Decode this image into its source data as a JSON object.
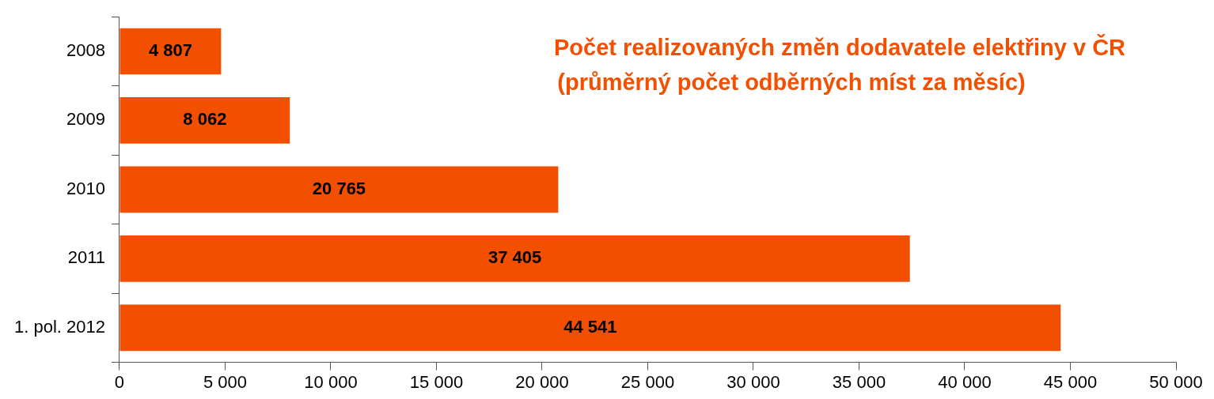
{
  "chart_data": {
    "type": "bar",
    "orientation": "horizontal",
    "title": "Počet realizovaných změn dodavatele elektřiny v ČR",
    "subtitle": "(průměrný počet odběrných míst za měsíc)",
    "categories": [
      "2008",
      "2009",
      "2010",
      "2011",
      "1. pol. 2012"
    ],
    "values": [
      4807,
      8062,
      20765,
      37405,
      44541
    ],
    "value_labels": [
      "4 807",
      "8 062",
      "20 765",
      "37 405",
      "44 541"
    ],
    "color": "#f25000",
    "xlim": [
      0,
      50000
    ],
    "xticks": [
      0,
      {
        "value": 5000,
        "label": "5 000"
      },
      {
        "value": 10000,
        "label": "10 000"
      },
      {
        "value": 15000,
        "label": "15 000"
      },
      {
        "value": 20000,
        "label": "20 000"
      },
      {
        "value": 25000,
        "label": "25 000"
      },
      {
        "value": 30000,
        "label": "30 000"
      },
      {
        "value": 35000,
        "label": "35 000"
      },
      {
        "value": 40000,
        "label": "40 000"
      },
      {
        "value": 45000,
        "label": "45 000"
      },
      {
        "value": 50000,
        "label": "50 000"
      }
    ],
    "grid": false,
    "legend": false
  }
}
